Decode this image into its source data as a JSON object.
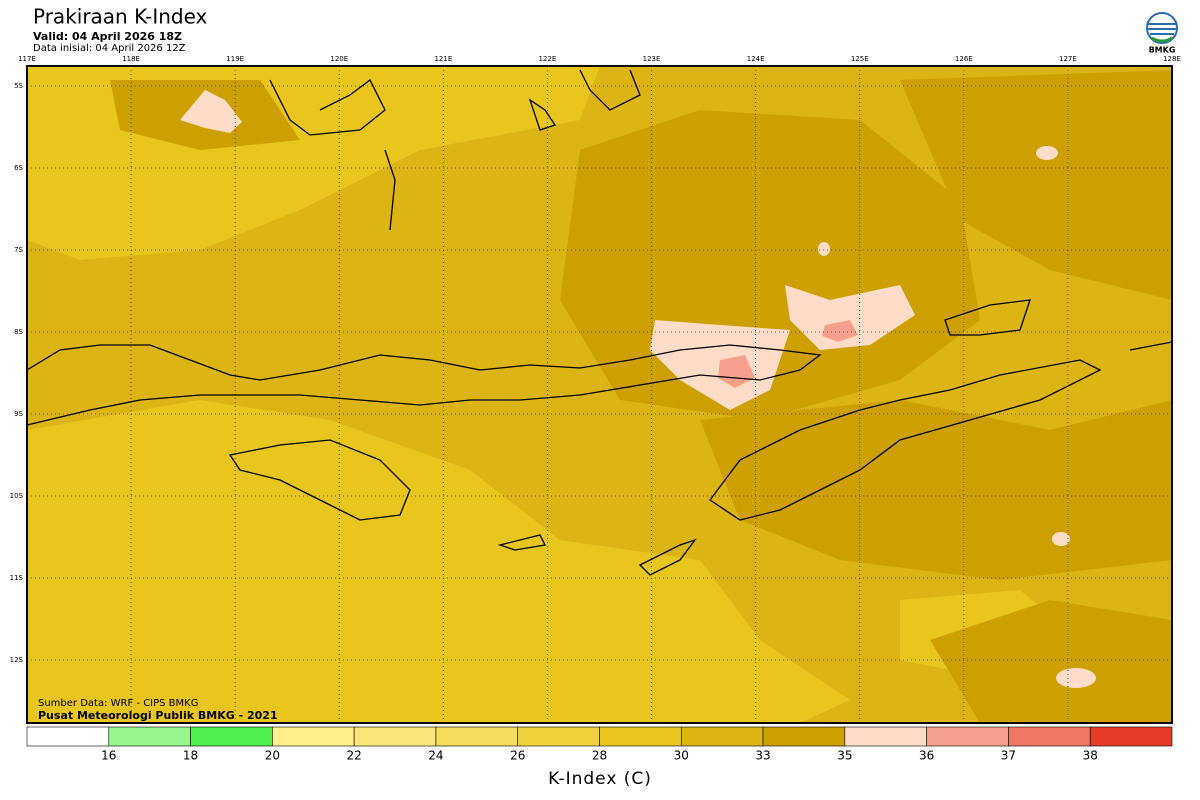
{
  "header": {
    "title": "Prakiraan K-Index",
    "valid": "Valid: 04 April 2026 18Z",
    "initial": "Data inisial: 04 April 2026 12Z",
    "logo": "BMKG"
  },
  "map": {
    "lon_labels": [
      "117E",
      "118E",
      "119E",
      "120E",
      "121E",
      "122E",
      "123E",
      "124E",
      "125E",
      "126E",
      "127E",
      "128E"
    ],
    "lat_labels": [
      "5S",
      "6S",
      "7S",
      "8S",
      "9S",
      "10S",
      "11S",
      "12S"
    ],
    "source": "Sumber Data: WRF - CIPS BMKG",
    "credit": "Pusat Meteorologi Publik BMKG - 2021"
  },
  "colorbar": {
    "label": "K-Index (C)",
    "ticks": [
      16,
      18,
      20,
      22,
      24,
      26,
      28,
      30,
      33,
      35,
      36,
      37,
      38
    ],
    "colors": [
      "#ffffff",
      "#96f58c",
      "#50f050",
      "#fff08c",
      "#fae678",
      "#f5dc5a",
      "#f0d23c",
      "#e8c61e",
      "#dcb414",
      "#cda000",
      "#ffdcc8",
      "#f5a08c",
      "#f07864",
      "#e63c28"
    ]
  }
}
